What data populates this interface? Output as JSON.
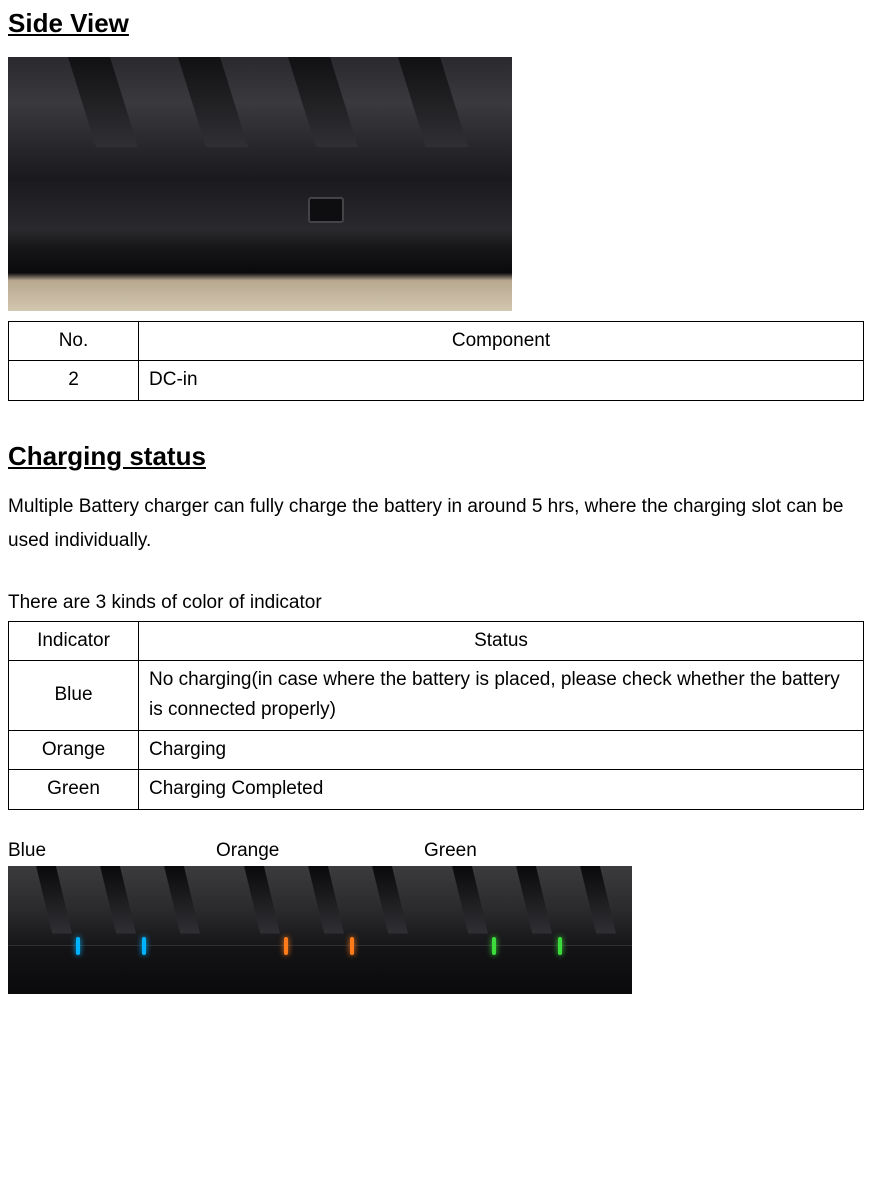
{
  "sideView": {
    "heading": "Side View",
    "table": {
      "headers": [
        "No.",
        "Component"
      ],
      "rows": [
        {
          "no": "2",
          "component": "DC-in"
        }
      ]
    }
  },
  "chargingStatus": {
    "heading": "Charging status",
    "description": "Multiple Battery charger can fully charge the battery in around 5 hrs, where the charging slot can be used individually.",
    "intro": "There are 3 kinds of color of indicator",
    "table": {
      "headers": [
        "Indicator",
        "Status"
      ],
      "rows": [
        {
          "indicator": "Blue",
          "status": "No charging(in case where the battery is placed, please check whether the battery is connected properly)"
        },
        {
          "indicator": "Orange",
          "status": "Charging"
        },
        {
          "indicator": "Green",
          "status": "Charging Completed"
        }
      ]
    },
    "thumbnails": {
      "labels": [
        "Blue",
        "Orange",
        "Green"
      ],
      "ledColors": [
        "#00b3ff",
        "#ff7a1a",
        "#3bdc3b"
      ]
    }
  },
  "colors": {
    "text": "#000000",
    "background": "#ffffff",
    "tableBorder": "#000000"
  }
}
